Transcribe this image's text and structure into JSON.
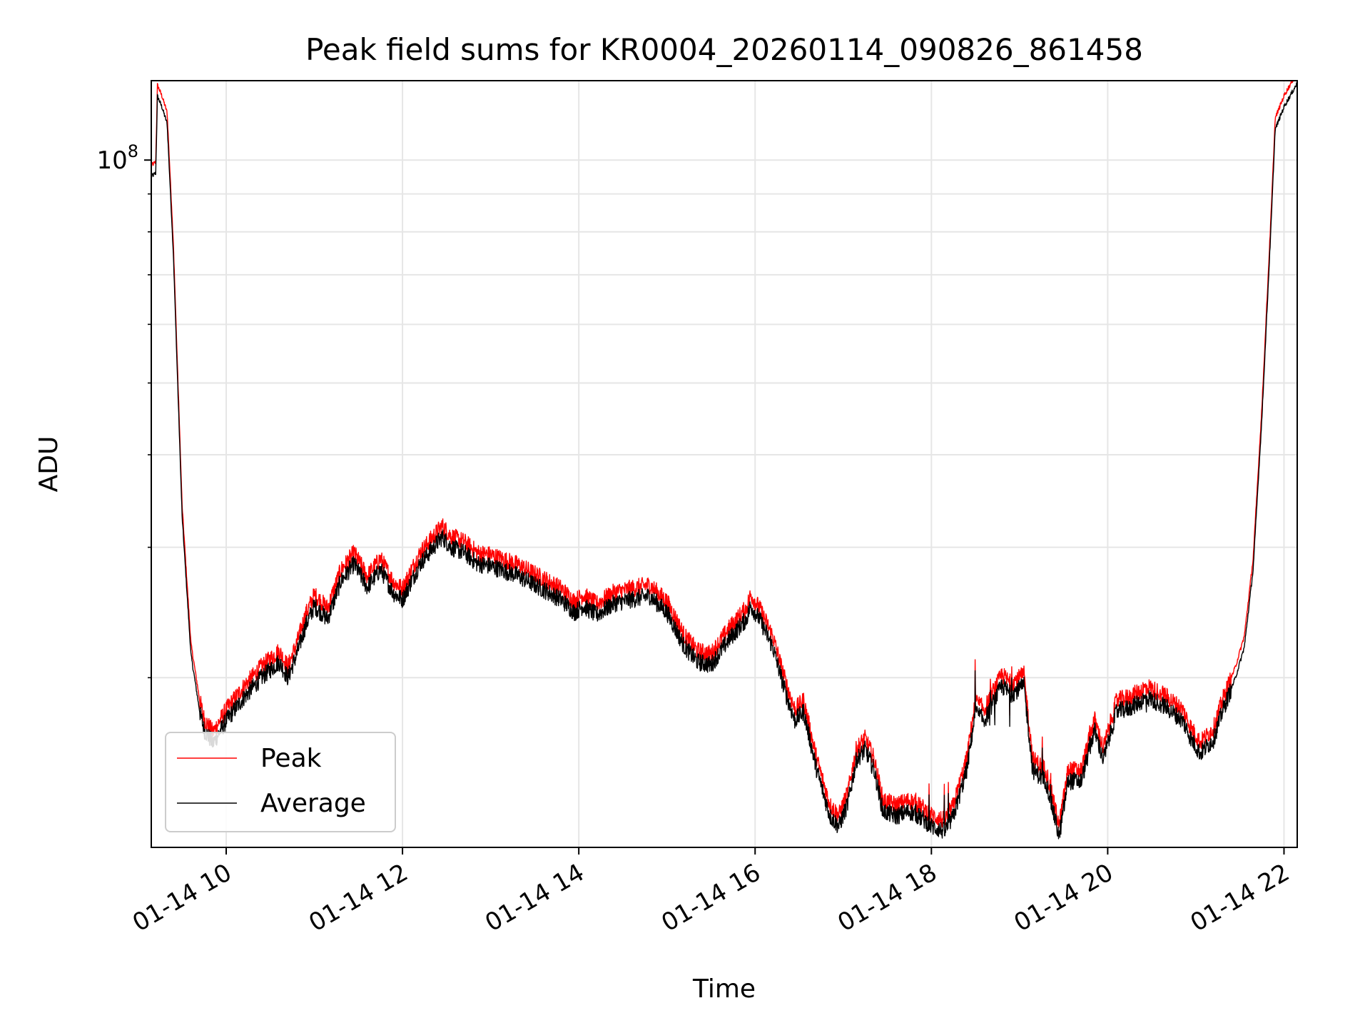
{
  "chart_data": {
    "type": "line",
    "title": "Peak field sums for KR0004_20260114_090826_861458",
    "xlabel": "Time",
    "ylabel": "ADU",
    "yscale": "log",
    "xlim": [
      9.15,
      22.15
    ],
    "ylim": [
      11800000,
      128000000
    ],
    "xticks": [
      {
        "value": 10,
        "label": "01-14 10"
      },
      {
        "value": 12,
        "label": "01-14 12"
      },
      {
        "value": 14,
        "label": "01-14 14"
      },
      {
        "value": 16,
        "label": "01-14 16"
      },
      {
        "value": 18,
        "label": "01-14 18"
      },
      {
        "value": 20,
        "label": "01-14 20"
      },
      {
        "value": 22,
        "label": "01-14 22"
      }
    ],
    "ytick_major": {
      "value": 100000000,
      "base": "10",
      "exponent": "8"
    },
    "ytick_minor": [
      20000000,
      30000000,
      40000000,
      50000000,
      60000000,
      70000000,
      80000000,
      90000000
    ],
    "grid": true,
    "legend_position": "lower-left",
    "series": [
      {
        "name": "Peak",
        "color": "#ff0000",
        "offset_ratio": 1.035
      },
      {
        "name": "Average",
        "color": "#000000",
        "offset_ratio": 1.0
      }
    ],
    "x": [
      9.15,
      9.2,
      9.22,
      9.27,
      9.33,
      9.4,
      9.5,
      9.6,
      9.7,
      9.75,
      9.85,
      9.9,
      10.0,
      10.2,
      10.4,
      10.6,
      10.7,
      10.8,
      10.9,
      11.0,
      11.15,
      11.3,
      11.45,
      11.6,
      11.75,
      11.9,
      12.0,
      12.1,
      12.2,
      12.3,
      12.45,
      12.55,
      12.7,
      12.85,
      13.0,
      13.3,
      13.6,
      13.8,
      13.95,
      14.05,
      14.2,
      14.4,
      14.6,
      14.8,
      15.0,
      15.2,
      15.35,
      15.5,
      15.7,
      15.9,
      15.95,
      16.05,
      16.2,
      16.35,
      16.45,
      16.55,
      16.7,
      16.85,
      16.95,
      17.05,
      17.15,
      17.25,
      17.35,
      17.45,
      17.6,
      17.75,
      17.9,
      18.0,
      18.15,
      18.25,
      18.4,
      18.5,
      18.6,
      18.7,
      18.8,
      18.9,
      19.05,
      19.15,
      19.3,
      19.45,
      19.55,
      19.7,
      19.85,
      19.95,
      20.1,
      20.25,
      20.45,
      20.65,
      20.85,
      20.95,
      21.05,
      21.2,
      21.3,
      21.45,
      21.55,
      21.65,
      21.75,
      21.85,
      21.9,
      22.0,
      22.15
    ],
    "values": [
      95000000,
      96000000,
      122000000,
      118000000,
      112000000,
      75000000,
      33000000,
      21500000,
      18000000,
      17000000,
      16300000,
      16700000,
      17500000,
      18800000,
      20000000,
      21000000,
      20000000,
      21500000,
      23500000,
      25000000,
      24000000,
      27000000,
      28500000,
      26500000,
      28000000,
      26000000,
      25500000,
      27000000,
      28500000,
      29500000,
      31000000,
      30000000,
      29500000,
      28500000,
      28300000,
      27500000,
      26300000,
      25500000,
      24500000,
      25000000,
      24300000,
      25200000,
      25500000,
      25800000,
      24500000,
      22000000,
      21000000,
      20800000,
      22500000,
      24000000,
      25000000,
      24000000,
      22000000,
      19000000,
      17500000,
      18000000,
      15000000,
      13000000,
      12600000,
      13500000,
      15500000,
      16000000,
      15000000,
      13200000,
      13000000,
      13200000,
      12900000,
      12600000,
      12400000,
      13000000,
      15000000,
      18000000,
      17500000,
      18500000,
      19500000,
      19000000,
      19500000,
      15000000,
      14500000,
      12200000,
      14500000,
      14500000,
      17000000,
      15500000,
      18000000,
      18200000,
      18800000,
      18300000,
      17500000,
      16500000,
      15800000,
      16500000,
      18000000,
      20000000,
      22000000,
      28000000,
      45000000,
      80000000,
      110000000,
      118000000,
      127000000
    ]
  },
  "legend": {
    "peak_label": "Peak",
    "average_label": "Average"
  }
}
